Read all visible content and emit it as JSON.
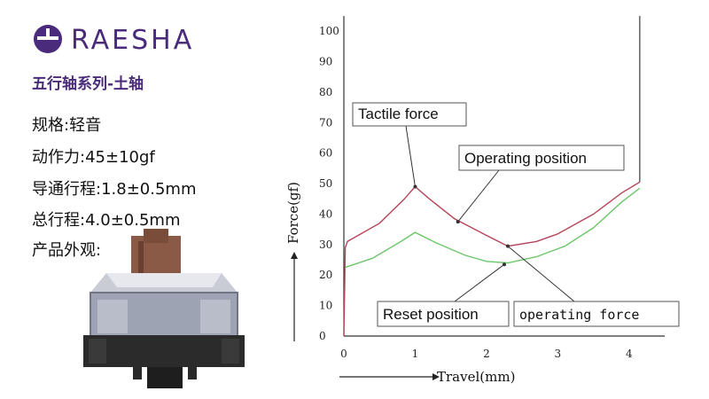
{
  "brand": {
    "name": "RAESHA",
    "accent": "#4a2a7a"
  },
  "subtitle": "五行轴系列-土轴",
  "specs": [
    {
      "label": "规格:",
      "value": "轻音"
    },
    {
      "label": "动作力:",
      "value": "45±10gf"
    },
    {
      "label": "导通行程:",
      "value": "1.8±0.5mm"
    },
    {
      "label": "总行程:",
      "value": "4.0±0.5mm"
    },
    {
      "label": "产品外观:",
      "value": ""
    }
  ],
  "chart_data": {
    "type": "line",
    "xlabel": "Travel(mm)",
    "ylabel": "Force(gf)",
    "xlim": [
      0,
      4.5
    ],
    "ylim": [
      0,
      105
    ],
    "x_ticks": [
      0,
      1,
      2,
      3,
      4
    ],
    "y_ticks": [
      0,
      10,
      20,
      30,
      40,
      50,
      60,
      70,
      80,
      90,
      100
    ],
    "grid": false,
    "series": [
      {
        "color": "#b5455a",
        "points": [
          [
            0,
            0
          ],
          [
            0.02,
            29
          ],
          [
            0.05,
            31
          ],
          [
            0.5,
            37
          ],
          [
            0.85,
            45
          ],
          [
            1.0,
            49
          ],
          [
            1.2,
            45
          ],
          [
            1.55,
            38.5
          ],
          [
            2.0,
            33
          ],
          [
            2.3,
            29.5
          ],
          [
            2.7,
            31
          ],
          [
            3.0,
            33.5
          ],
          [
            3.5,
            40
          ],
          [
            3.9,
            47
          ],
          [
            4.15,
            50.5
          ]
        ]
      },
      {
        "color": "#6cc76a",
        "points": [
          [
            0.02,
            22.5
          ],
          [
            0.4,
            25.5
          ],
          [
            0.8,
            31
          ],
          [
            1.0,
            34
          ],
          [
            1.3,
            30.5
          ],
          [
            1.7,
            26.5
          ],
          [
            2.0,
            24.5
          ],
          [
            2.3,
            24
          ],
          [
            2.7,
            26
          ],
          [
            3.1,
            29.5
          ],
          [
            3.5,
            35.5
          ],
          [
            3.9,
            44
          ],
          [
            4.15,
            48.5
          ]
        ]
      }
    ],
    "vertical_end": {
      "x": 4.15,
      "top": 105
    },
    "annotations": [
      {
        "text": "Tactile force",
        "point": [
          1.0,
          49
        ],
        "style": "sans"
      },
      {
        "text": "Operating position",
        "point": [
          1.6,
          37.5
        ],
        "style": "sans"
      },
      {
        "text": "Reset position",
        "point": [
          2.25,
          23.5
        ],
        "style": "sans"
      },
      {
        "text": "operating force",
        "point": [
          2.3,
          29.5
        ],
        "style": "mono"
      }
    ]
  }
}
